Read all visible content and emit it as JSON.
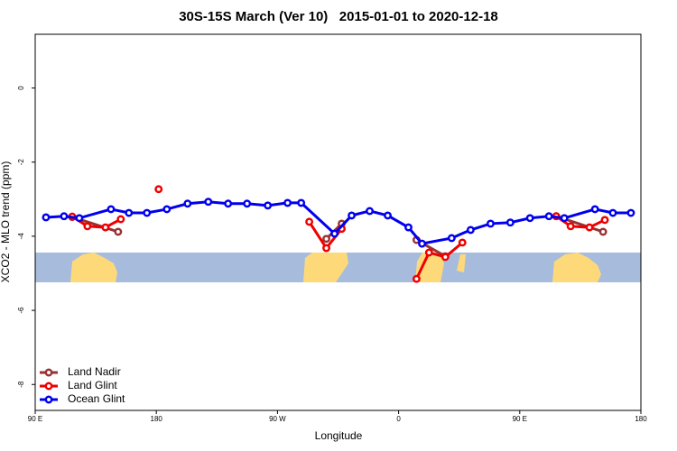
{
  "chart_data": {
    "type": "line",
    "title": "30S-15S March (Ver 10)   2015-01-01 to 2020-12-18",
    "x_label": "Longitude",
    "y_label": "XCO2 - MLO trend (ppm)",
    "xlim": [
      90,
      540
    ],
    "ylim": [
      -8.7,
      1.45
    ],
    "xticks": [
      {
        "value": 90,
        "label": "90 E"
      },
      {
        "value": 180,
        "label": "180"
      },
      {
        "value": 270,
        "label": "90 W"
      },
      {
        "value": 360,
        "label": "0"
      },
      {
        "value": 450,
        "label": "90 E"
      },
      {
        "value": 540,
        "label": "180"
      }
    ],
    "yticks": [
      0,
      -2,
      -4,
      -6,
      -8
    ],
    "legend": "bottom-left",
    "series": [
      {
        "name": "Land Nadir",
        "color": "#993333",
        "x": [
          117.5,
          151.6,
          null,
          306.3,
          317.7,
          null,
          373.3,
          394.7,
          null,
          477.1,
          511.9
        ],
        "values": [
          -3.48,
          -3.88,
          null,
          -4.07,
          -3.66,
          null,
          -4.1,
          -4.54,
          null,
          -3.46,
          -3.88
        ]
      },
      {
        "name": "Land Glint",
        "color": "#ee0000",
        "x": [
          117.5,
          128.8,
          142.2,
          153.6,
          null,
          181.7,
          null,
          293.6,
          306.3,
          317.7,
          null,
          373.3,
          382.6,
          394.7,
          407.4,
          null,
          477.1,
          487.8,
          501.8,
          513.2
        ],
        "values": [
          -3.47,
          -3.73,
          -3.76,
          -3.54,
          null,
          -2.73,
          null,
          -3.61,
          -4.32,
          -3.8,
          null,
          -5.15,
          -4.44,
          -4.56,
          -4.17,
          null,
          -3.46,
          -3.73,
          -3.76,
          -3.56
        ]
      },
      {
        "name": "Ocean Glint",
        "color": "#0000ee",
        "x": [
          98,
          111.4,
          122.8,
          146.3,
          159.6,
          173,
          187.8,
          203.2,
          218.6,
          233.3,
          247.4,
          262.8,
          277.5,
          287.6,
          312.4,
          325.1,
          338.5,
          351.9,
          367.3,
          377.4,
          399.4,
          413.5,
          428.3,
          443,
          457.6,
          471.7,
          483.1,
          505.9,
          519.2,
          532.6
        ],
        "values": [
          -3.49,
          -3.46,
          -3.51,
          -3.27,
          -3.37,
          -3.37,
          -3.27,
          -3.12,
          -3.07,
          -3.12,
          -3.12,
          -3.17,
          -3.1,
          -3.1,
          -3.93,
          -3.44,
          -3.32,
          -3.44,
          -3.76,
          -4.2,
          -4.05,
          -3.83,
          -3.66,
          -3.63,
          -3.51,
          -3.46,
          -3.51,
          -3.27,
          -3.37,
          -3.37
        ]
      }
    ]
  }
}
